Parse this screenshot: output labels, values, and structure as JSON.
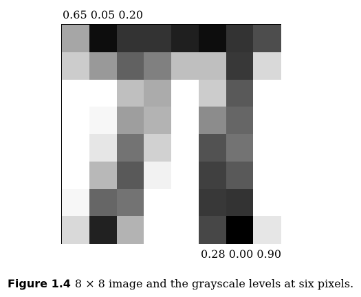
{
  "top_values": "0.65 0.05 0.20",
  "bottom_values": "0.28 0.00 0.90",
  "caption": {
    "tag": "Figure 1.4",
    "text": "8 × 8 image and the grayscale levels at six pixels."
  },
  "grayscale_grid": [
    [
      0.65,
      0.05,
      0.2,
      0.2,
      0.12,
      0.05,
      0.2,
      0.3
    ],
    [
      0.8,
      0.6,
      0.38,
      0.5,
      0.75,
      0.75,
      0.22,
      0.85
    ],
    [
      1.0,
      1.0,
      0.75,
      0.67,
      1.0,
      0.8,
      0.35,
      1.0
    ],
    [
      1.0,
      0.97,
      0.62,
      0.7,
      1.0,
      0.55,
      0.4,
      1.0
    ],
    [
      1.0,
      0.9,
      0.45,
      0.82,
      1.0,
      0.32,
      0.45,
      1.0
    ],
    [
      1.0,
      0.72,
      0.35,
      0.95,
      1.0,
      0.25,
      0.35,
      1.0
    ],
    [
      0.97,
      0.4,
      0.45,
      1.0,
      1.0,
      0.22,
      0.2,
      1.0
    ],
    [
      0.85,
      0.13,
      0.7,
      1.0,
      1.0,
      0.28,
      0.0,
      0.9
    ]
  ]
}
